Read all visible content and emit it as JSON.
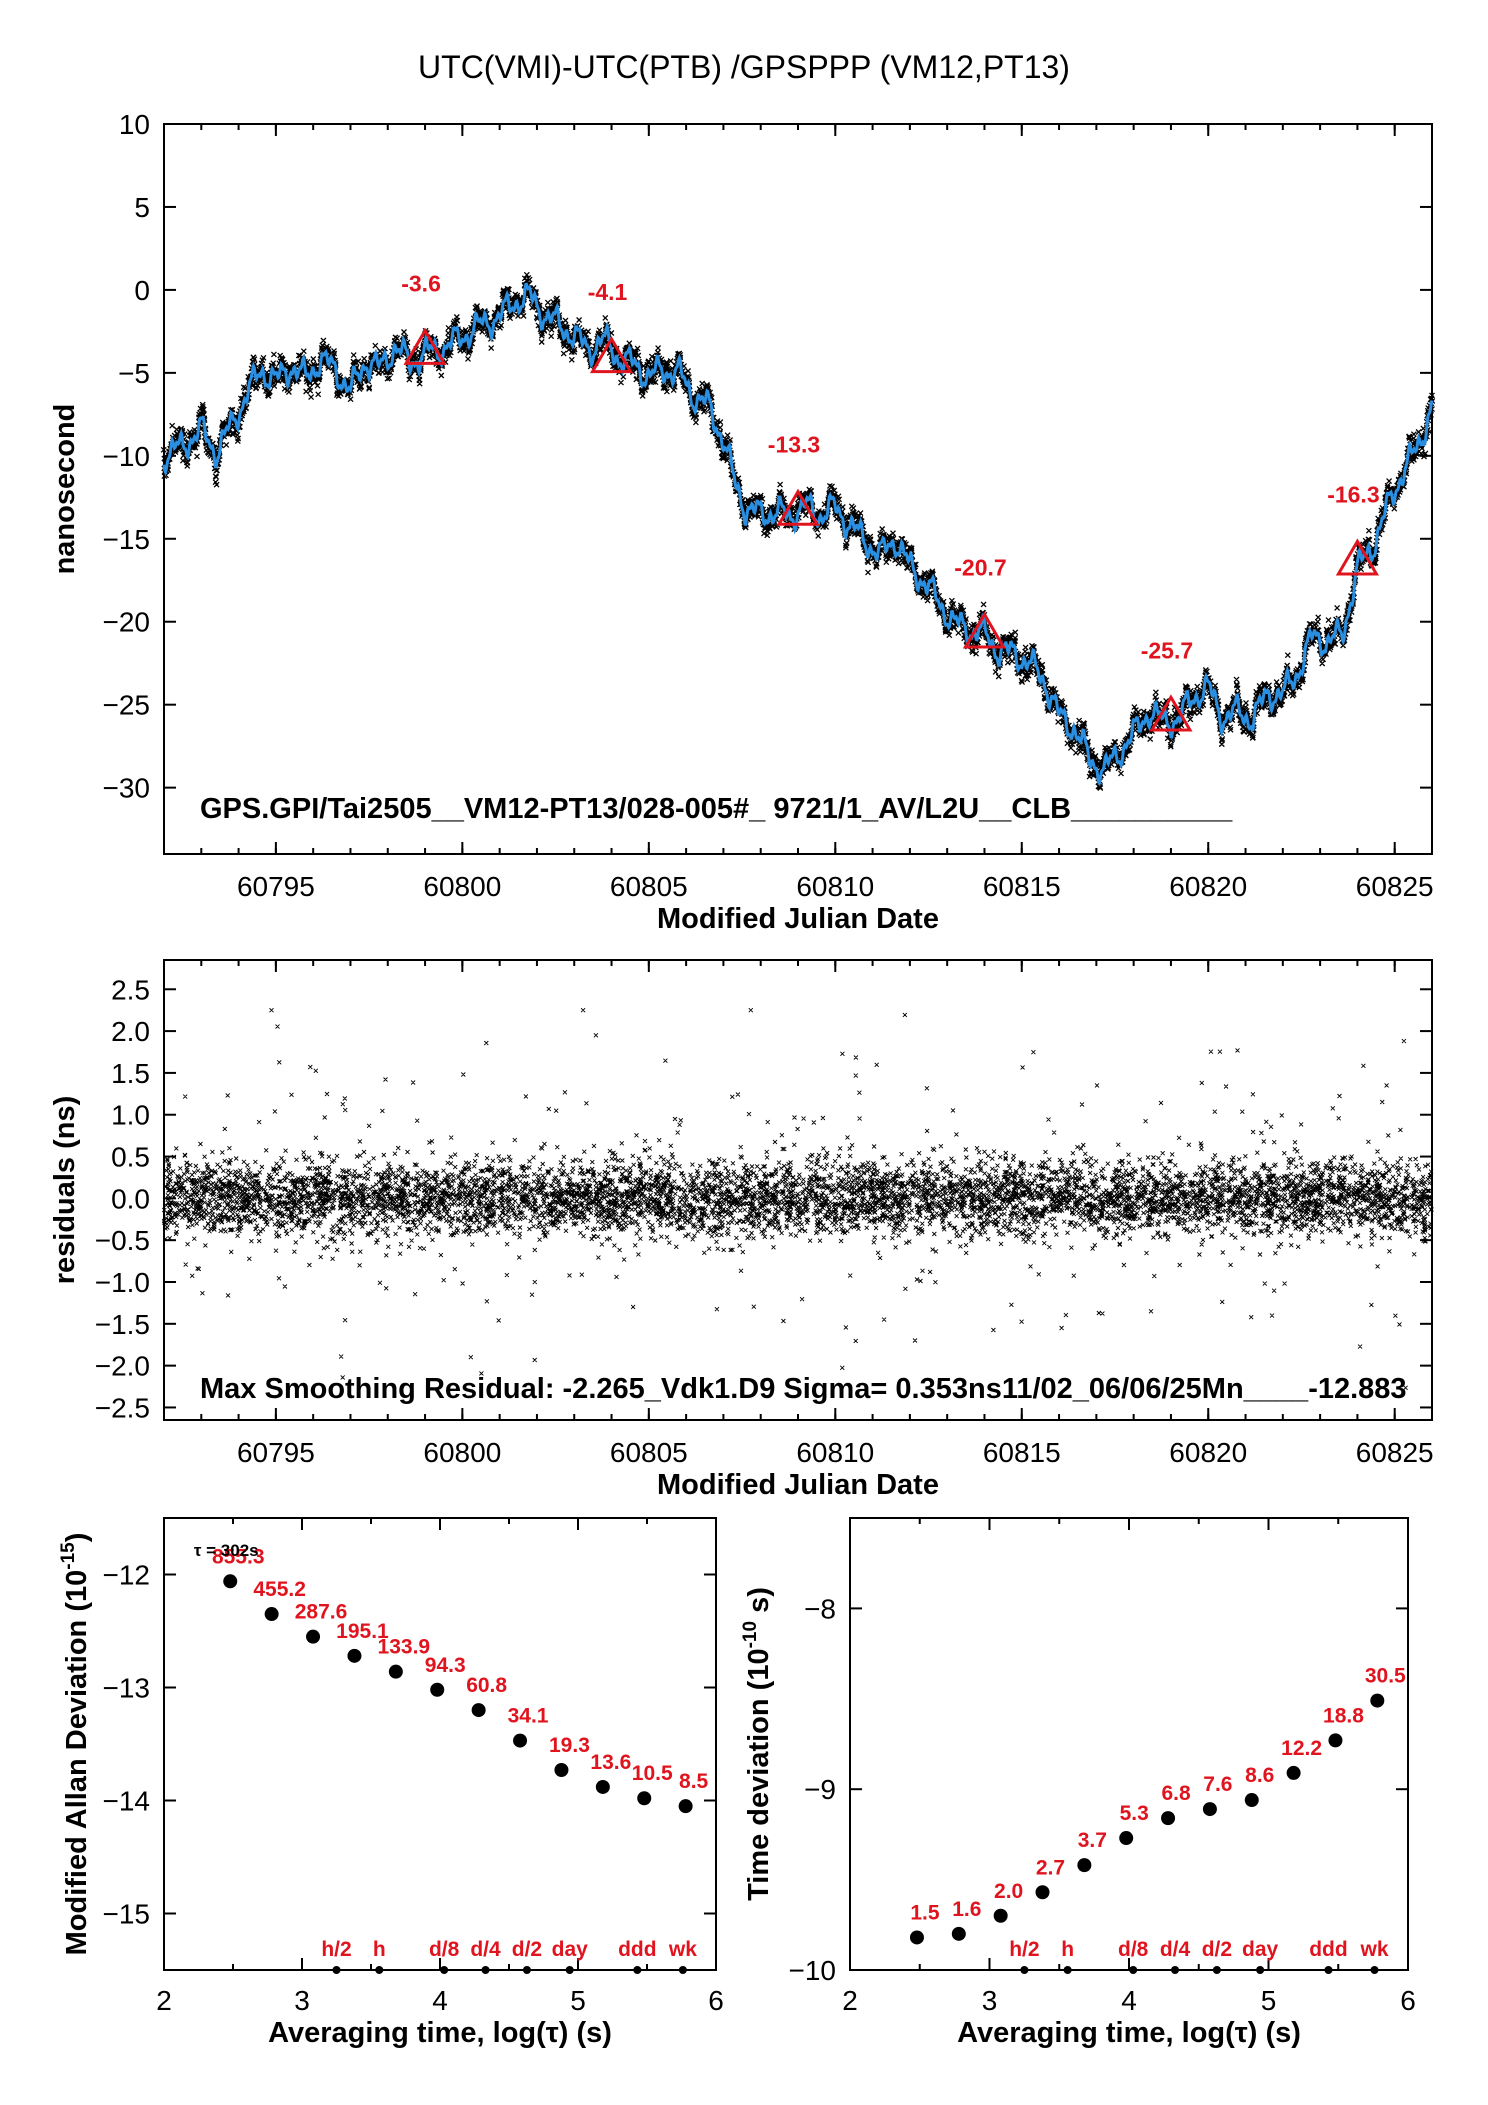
{
  "figure": {
    "title": "UTC(VMI)-UTC(PTB)  /GPSPPP  (VM12,PT13)"
  },
  "chart_data": [
    {
      "type": "line",
      "id": "main",
      "ylabel": "nanosecond",
      "xlabel": "Modified Julian Date",
      "xlim": [
        60792,
        60826
      ],
      "ylim": [
        -34,
        10
      ],
      "xticks": [
        60795,
        60800,
        60805,
        60810,
        60815,
        60820,
        60825
      ],
      "yticks": [
        10,
        5,
        0,
        -5,
        -10,
        -15,
        -20,
        -25,
        -30
      ],
      "ytick_labels": [
        "10",
        "5",
        "0",
        "−5",
        "−10",
        "−15",
        "−20",
        "−25",
        "−30"
      ],
      "footer_text": "GPS.GPI/Tai2505__VM12-PT13/028-005#_  9721/1_AV/L2U__CLB__________",
      "series_color": "#2a8fe0",
      "scatter_color": "#000000",
      "trend": {
        "x": [
          60792,
          60792.5,
          60793,
          60793.4,
          60793.8,
          60794.2,
          60794.6,
          60795,
          60795.4,
          60795.8,
          60796.2,
          60796.6,
          60797,
          60797.4,
          60797.8,
          60798.2,
          60798.6,
          60799,
          60799.4,
          60799.8,
          60800.2,
          60800.6,
          60801,
          60801.4,
          60801.8,
          60802.2,
          60802.6,
          60803,
          60803.4,
          60803.8,
          60804.2,
          60804.6,
          60805,
          60805.4,
          60805.8,
          60806.2,
          60806.6,
          60807,
          60807.3,
          60807.6,
          60808,
          60808.4,
          60808.8,
          60809.2,
          60809.6,
          60810,
          60810.4,
          60810.8,
          60811.2,
          60811.6,
          60812,
          60812.4,
          60812.8,
          60813.2,
          60813.6,
          60814,
          60814.4,
          60814.8,
          60815.2,
          60815.6,
          60816,
          60816.4,
          60816.8,
          60817.2,
          60817.6,
          60818,
          60818.4,
          60818.8,
          60819.2,
          60819.6,
          60820,
          60820.4,
          60820.8,
          60821.2,
          60821.6,
          60822,
          60822.4,
          60822.8,
          60823.2,
          60823.6,
          60824,
          60824.4,
          60824.8,
          60825.2,
          60825.6,
          60826
        ],
        "y": [
          -10,
          -9.4,
          -8.4,
          -9.8,
          -8.2,
          -6.4,
          -4.8,
          -5.5,
          -4.6,
          -5.3,
          -4.2,
          -4.8,
          -6.1,
          -4.3,
          -4.7,
          -3.4,
          -4.4,
          -3.8,
          -3.6,
          -3.1,
          -2.5,
          -2.0,
          -1.6,
          -0.7,
          -0.4,
          -1.5,
          -2.1,
          -2.8,
          -3.6,
          -3.0,
          -4.1,
          -4.5,
          -5.2,
          -4.8,
          -5.0,
          -6.4,
          -7.0,
          -9.0,
          -11.6,
          -13.2,
          -13.5,
          -13.4,
          -13.6,
          -13.0,
          -13.6,
          -13.1,
          -14.2,
          -15.1,
          -16.0,
          -15.0,
          -16.7,
          -17.6,
          -18.9,
          -20.1,
          -20.5,
          -20.7,
          -21.8,
          -21.9,
          -22.5,
          -23.5,
          -25.7,
          -26.4,
          -28.2,
          -29.0,
          -27.9,
          -26.8,
          -25.4,
          -26.0,
          -25.9,
          -24.5,
          -24.0,
          -25.8,
          -25.4,
          -25.9,
          -24.3,
          -24.4,
          -23.0,
          -20.9,
          -21.2,
          -20.8,
          -16.8,
          -15.5,
          -13.2,
          -11.0,
          -9.6,
          -7.0
        ]
      },
      "markers": {
        "x": [
          60799,
          60804,
          60809,
          60814,
          60819,
          60824
        ],
        "y": [
          -3.6,
          -4.1,
          -13.3,
          -20.7,
          -25.7,
          -16.3
        ],
        "labels": [
          "-3.6",
          "-4.1",
          "-13.3",
          "-20.7",
          "-25.7",
          "-16.3"
        ]
      }
    },
    {
      "type": "scatter",
      "id": "residuals",
      "ylabel": "residuals (ns)",
      "xlabel": "Modified Julian Date",
      "xlim": [
        60792,
        60826
      ],
      "ylim": [
        -2.65,
        2.85
      ],
      "xticks": [
        60795,
        60800,
        60805,
        60810,
        60815,
        60820,
        60825
      ],
      "yticks": [
        2.5,
        2.0,
        1.5,
        1.0,
        0.5,
        0.0,
        -0.5,
        -1.0,
        -1.5,
        -2.0,
        -2.5
      ],
      "ytick_labels": [
        "2.5",
        "2.0",
        "1.5",
        "1.0",
        "0.5",
        "0.0",
        "−0.5",
        "−1.0",
        "−1.5",
        "−2.0",
        "−2.5"
      ],
      "footer_text": "Max Smoothing Residual: -2.265_Vdk1.D9  Sigma= 0.353ns11/02_06/06/25Mn____-12.883",
      "sigma": 0.353,
      "max_residual": -2.265
    },
    {
      "type": "scatter",
      "id": "mdev",
      "ylabel": "Modified Allan Deviation (10",
      "ylabel_sup": "-15",
      "ylabel_end": ")",
      "xlabel": "Averaging time, log(τ) (s)",
      "xlim": [
        2,
        6
      ],
      "ylim": [
        -15.5,
        -11.5
      ],
      "xticks": [
        2,
        3,
        4,
        5,
        6
      ],
      "yticks": [
        -12,
        -13,
        -14,
        -15
      ],
      "ytick_labels": [
        "−12",
        "−13",
        "−14",
        "−15"
      ],
      "tau_note": "τ = 302s",
      "x": [
        2.48,
        2.78,
        3.08,
        3.38,
        3.68,
        3.98,
        4.28,
        4.58,
        4.88,
        5.18,
        5.48,
        5.78
      ],
      "y": [
        -12.06,
        -12.35,
        -12.55,
        -12.72,
        -12.86,
        -13.02,
        -13.2,
        -13.47,
        -13.73,
        -13.88,
        -13.98,
        -14.05
      ],
      "point_labels": [
        "855.3",
        "455.2",
        "287.6",
        "195.1",
        "133.9",
        "94.3",
        "60.8",
        "34.1",
        "19.3",
        "13.6",
        "10.5",
        "8.5"
      ],
      "markers_x": [
        3.25,
        3.56,
        4.03,
        4.33,
        4.63,
        4.94,
        5.43,
        5.76
      ],
      "markers_labels": [
        "h/2",
        "h",
        "d/8",
        "d/4",
        "d/2",
        "day",
        "ddd",
        "wk"
      ]
    },
    {
      "type": "scatter",
      "id": "tdev",
      "ylabel": "Time deviation (10",
      "ylabel_sup": "-10",
      "ylabel_end": " s)",
      "xlabel": "Averaging time, log(τ) (s)",
      "xlim": [
        2,
        6
      ],
      "ylim": [
        -10,
        -7.5
      ],
      "xticks": [
        2,
        3,
        4,
        5,
        6
      ],
      "yticks": [
        -8,
        -9,
        -10
      ],
      "ytick_labels": [
        "−8",
        "−9",
        "−10"
      ],
      "x": [
        2.48,
        2.78,
        3.08,
        3.38,
        3.68,
        3.98,
        4.28,
        4.58,
        4.88,
        5.18,
        5.48,
        5.78
      ],
      "y": [
        -9.82,
        -9.8,
        -9.7,
        -9.57,
        -9.42,
        -9.27,
        -9.16,
        -9.11,
        -9.06,
        -8.91,
        -8.73,
        -8.51
      ],
      "point_labels": [
        "1.5",
        "1.6",
        "2.0",
        "2.7",
        "3.7",
        "5.3",
        "6.8",
        "7.6",
        "8.6",
        "12.2",
        "18.8",
        "30.5"
      ],
      "markers_x": [
        3.25,
        3.56,
        4.03,
        4.33,
        4.63,
        4.94,
        5.43,
        5.76
      ],
      "markers_labels": [
        "h/2",
        "h",
        "d/8",
        "d/4",
        "d/2",
        "day",
        "ddd",
        "wk"
      ]
    }
  ]
}
